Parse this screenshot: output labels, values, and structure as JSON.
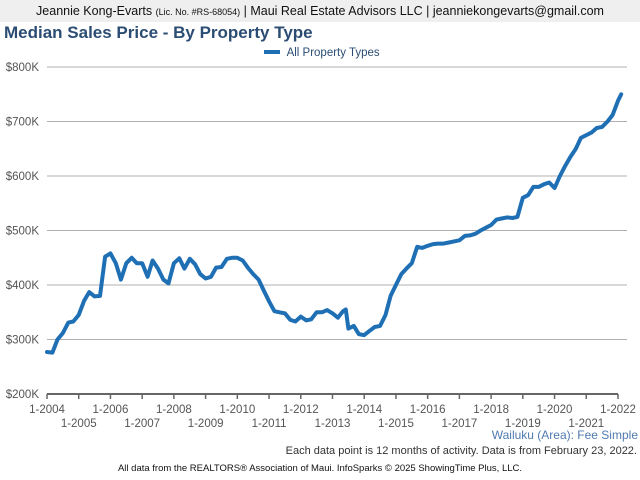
{
  "header": {
    "agent": "Jeannie Kong-Evarts",
    "license": "(Lic. No. #RS-68054)",
    "rest": "| Maui Real Estate Advisors LLC | jeanniekongevarts@gmail.com"
  },
  "footer": {
    "area_label": "Wailuku (Area): Fee Simple",
    "note": "Each data point is 12 months of activity. Data is from February 23, 2022.",
    "source": "All data from the REALTORS® Association of Maui. InfoSparks © 2025 ShowingTime Plus, LLC."
  },
  "colors": {
    "series": "#1f6fb5",
    "title": "#2b4d73",
    "grid": "#b0b0b0",
    "axis": "#666666"
  },
  "chart_data": {
    "type": "line",
    "title": "Median Sales Price - By Property Type",
    "xlabel": "",
    "ylabel": "",
    "ylim": [
      200000,
      800000
    ],
    "xlim": [
      2004.0,
      2022.1
    ],
    "grid": true,
    "legend_position": "top-center",
    "y_ticks": [
      {
        "value": 200000,
        "label": "$200K"
      },
      {
        "value": 300000,
        "label": "$300K"
      },
      {
        "value": 400000,
        "label": "$400K"
      },
      {
        "value": 500000,
        "label": "$500K"
      },
      {
        "value": 600000,
        "label": "$600K"
      },
      {
        "value": 700000,
        "label": "$700K"
      },
      {
        "value": 800000,
        "label": "$800K"
      }
    ],
    "x_ticks": [
      {
        "value": 2004,
        "label": "1-2004"
      },
      {
        "value": 2005,
        "label": "1-2005"
      },
      {
        "value": 2006,
        "label": "1-2006"
      },
      {
        "value": 2007,
        "label": "1-2007"
      },
      {
        "value": 2008,
        "label": "1-2008"
      },
      {
        "value": 2009,
        "label": "1-2009"
      },
      {
        "value": 2010,
        "label": "1-2010"
      },
      {
        "value": 2011,
        "label": "1-2011"
      },
      {
        "value": 2012,
        "label": "1-2012"
      },
      {
        "value": 2013,
        "label": "1-2013"
      },
      {
        "value": 2014,
        "label": "1-2014"
      },
      {
        "value": 2015,
        "label": "1-2015"
      },
      {
        "value": 2016,
        "label": "1-2016"
      },
      {
        "value": 2017,
        "label": "1-2017"
      },
      {
        "value": 2018,
        "label": "1-2018"
      },
      {
        "value": 2019,
        "label": "1-2019"
      },
      {
        "value": 2020,
        "label": "1-2020"
      },
      {
        "value": 2021,
        "label": "1-2021"
      },
      {
        "value": 2022,
        "label": "1-2022"
      }
    ],
    "series": [
      {
        "name": "All Property Types",
        "x": [
          2004.0,
          2004.17,
          2004.33,
          2004.5,
          2004.67,
          2004.83,
          2005.0,
          2005.17,
          2005.33,
          2005.5,
          2005.67,
          2005.83,
          2006.0,
          2006.17,
          2006.33,
          2006.5,
          2006.67,
          2006.83,
          2007.0,
          2007.17,
          2007.33,
          2007.5,
          2007.67,
          2007.83,
          2008.0,
          2008.17,
          2008.33,
          2008.5,
          2008.67,
          2008.83,
          2009.0,
          2009.17,
          2009.33,
          2009.5,
          2009.67,
          2009.83,
          2010.0,
          2010.17,
          2010.33,
          2010.5,
          2010.67,
          2010.83,
          2011.0,
          2011.17,
          2011.33,
          2011.5,
          2011.67,
          2011.83,
          2012.0,
          2012.17,
          2012.33,
          2012.5,
          2012.67,
          2012.83,
          2013.0,
          2013.17,
          2013.33,
          2013.42,
          2013.5,
          2013.67,
          2013.83,
          2014.0,
          2014.17,
          2014.33,
          2014.5,
          2014.67,
          2014.83,
          2015.0,
          2015.17,
          2015.33,
          2015.5,
          2015.67,
          2015.83,
          2016.0,
          2016.17,
          2016.33,
          2016.5,
          2016.67,
          2016.83,
          2017.0,
          2017.17,
          2017.33,
          2017.5,
          2017.67,
          2017.83,
          2018.0,
          2018.17,
          2018.33,
          2018.5,
          2018.67,
          2018.83,
          2019.0,
          2019.17,
          2019.33,
          2019.5,
          2019.67,
          2019.83,
          2020.0,
          2020.17,
          2020.33,
          2020.5,
          2020.67,
          2020.83,
          2021.0,
          2021.17,
          2021.33,
          2021.5,
          2021.67,
          2021.83,
          2022.0,
          2022.1
        ],
        "values": [
          277000,
          276000,
          300000,
          312000,
          331000,
          333000,
          345000,
          371000,
          387000,
          379000,
          380000,
          452000,
          458000,
          440000,
          410000,
          440000,
          450000,
          440000,
          440000,
          415000,
          445000,
          430000,
          410000,
          403000,
          440000,
          449000,
          430000,
          448000,
          438000,
          420000,
          412000,
          415000,
          432000,
          433000,
          448000,
          450000,
          450000,
          445000,
          432000,
          420000,
          410000,
          390000,
          370000,
          352000,
          350000,
          348000,
          336000,
          333000,
          342000,
          335000,
          337000,
          350000,
          350000,
          354000,
          348000,
          340000,
          352000,
          355000,
          320000,
          325000,
          310000,
          308000,
          316000,
          323000,
          325000,
          345000,
          380000,
          400000,
          420000,
          430000,
          440000,
          470000,
          468000,
          472000,
          475000,
          476000,
          476000,
          478000,
          480000,
          482000,
          490000,
          491000,
          494000,
          500000,
          505000,
          510000,
          520000,
          522000,
          524000,
          523000,
          525000,
          560000,
          565000,
          580000,
          580000,
          585000,
          588000,
          578000,
          600000,
          618000,
          635000,
          650000,
          670000,
          675000,
          680000,
          688000,
          690000,
          700000,
          712000,
          738000,
          750000
        ]
      }
    ]
  }
}
